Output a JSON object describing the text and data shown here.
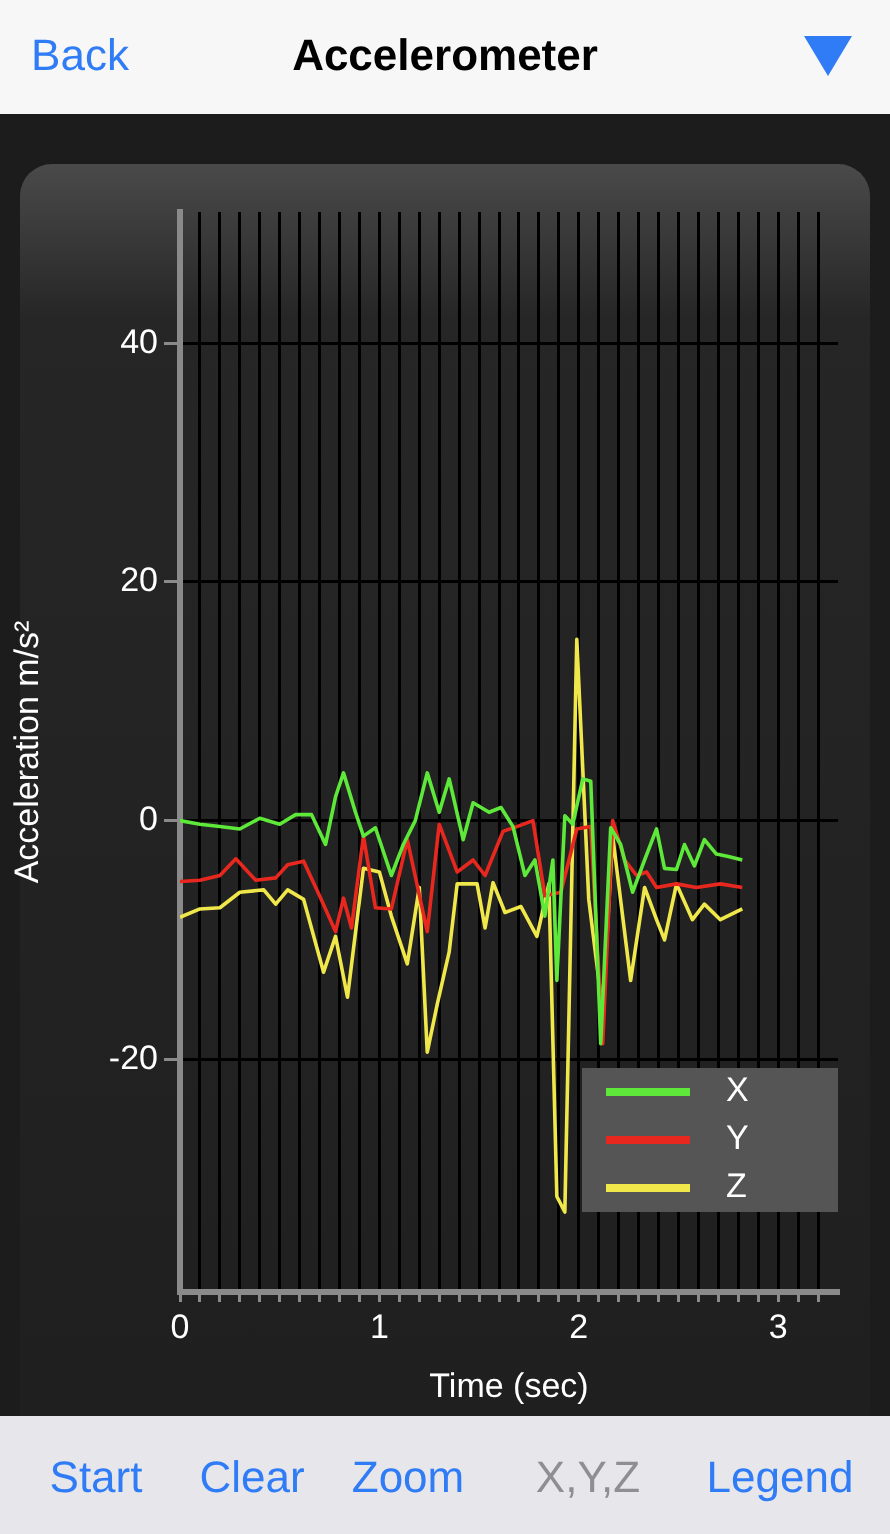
{
  "chart_data": {
    "type": "line",
    "title": "Accelerometer",
    "xlabel": "Time (sec)",
    "ylabel": "Acceleration m/s²",
    "xlim": [
      0,
      3.3
    ],
    "ylim": [
      -39.5,
      51
    ],
    "xticks": [
      0,
      {
        "value": 0.1,
        "label": null
      },
      {
        "value": 0.2,
        "label": null
      },
      {
        "value": 0.3,
        "label": null
      },
      {
        "value": 0.4,
        "label": null
      },
      {
        "value": 0.5,
        "label": null
      },
      {
        "value": 0.6,
        "label": null
      },
      {
        "value": 0.7,
        "label": null
      },
      {
        "value": 0.8,
        "label": null
      },
      {
        "value": 0.9,
        "label": null
      },
      1,
      {
        "value": 1.1,
        "label": null
      },
      {
        "value": 1.2,
        "label": null
      },
      {
        "value": 1.3,
        "label": null
      },
      {
        "value": 1.4,
        "label": null
      },
      {
        "value": 1.5,
        "label": null
      },
      {
        "value": 1.6,
        "label": null
      },
      {
        "value": 1.7,
        "label": null
      },
      {
        "value": 1.8,
        "label": null
      },
      {
        "value": 1.9,
        "label": null
      },
      2,
      {
        "value": 2.1,
        "label": null
      },
      {
        "value": 2.2,
        "label": null
      },
      {
        "value": 2.3,
        "label": null
      },
      {
        "value": 2.4,
        "label": null
      },
      {
        "value": 2.5,
        "label": null
      },
      {
        "value": 2.6,
        "label": null
      },
      {
        "value": 2.7,
        "label": null
      },
      {
        "value": 2.8,
        "label": null
      },
      {
        "value": 2.9,
        "label": null
      },
      3,
      {
        "value": 3.1,
        "label": null
      },
      {
        "value": 3.2,
        "label": null
      }
    ],
    "yticks": [
      -20,
      0,
      20,
      40
    ],
    "grid": true,
    "legend": "bottom right",
    "marker": "none",
    "line_style": "solid",
    "annotations": [
      "Back",
      "Start",
      "Clear",
      "Zoom",
      "X,Y,Z",
      "Legend"
    ],
    "series": [
      {
        "name": "X",
        "color": "#5ee83a",
        "x": [
          0,
          0.1,
          0.2,
          0.3,
          0.4,
          0.5,
          0.58,
          0.66,
          0.73,
          0.78,
          0.82,
          0.88,
          0.92,
          0.98,
          1.06,
          1.12,
          1.18,
          1.24,
          1.3,
          1.35,
          1.42,
          1.47,
          1.55,
          1.61,
          1.67,
          1.73,
          1.78,
          1.83,
          1.87,
          1.89,
          1.93,
          1.97,
          2.02,
          2.06,
          2.11,
          2.16,
          2.21,
          2.27,
          2.33,
          2.39,
          2.43,
          2.49,
          2.53,
          2.58,
          2.63,
          2.69,
          2.75,
          2.82
        ],
        "values": [
          0,
          -0.3,
          -0.5,
          -0.7,
          0.2,
          -0.3,
          0.5,
          0.5,
          -2,
          2,
          4,
          0.7,
          -1.3,
          -0.6,
          -4.6,
          -2,
          0,
          4,
          0.7,
          3.5,
          -1.6,
          1.5,
          0.7,
          1.1,
          -0.5,
          -4.6,
          -3.3,
          -8,
          -3.3,
          -13.4,
          0.4,
          -0.3,
          3.5,
          3.3,
          -18.7,
          -0.6,
          -2,
          -6,
          -3.3,
          -0.7,
          -4,
          -4.1,
          -2,
          -3.8,
          -1.6,
          -2.8,
          -3,
          -3.3
        ]
      },
      {
        "name": "Y",
        "color": "#e8281e",
        "x": [
          0,
          0.1,
          0.2,
          0.28,
          0.38,
          0.48,
          0.54,
          0.62,
          0.7,
          0.78,
          0.82,
          0.86,
          0.92,
          0.98,
          1.06,
          1.14,
          1.24,
          1.3,
          1.39,
          1.47,
          1.53,
          1.62,
          1.69,
          1.77,
          1.83,
          1.91,
          1.99,
          2.06,
          2.12,
          2.17,
          2.23,
          2.29,
          2.34,
          2.39,
          2.49,
          2.59,
          2.71,
          2.82
        ],
        "values": [
          -5.1,
          -5,
          -4.6,
          -3.2,
          -5,
          -4.8,
          -3.7,
          -3.4,
          -6.3,
          -9.3,
          -6.5,
          -9,
          -1.3,
          -7.3,
          -7.4,
          -1.6,
          -9.3,
          -0.3,
          -4.3,
          -3.3,
          -4.6,
          -0.9,
          -0.5,
          0,
          -6.3,
          -6,
          -0.7,
          -0.5,
          -18.7,
          0,
          -3.3,
          -4.6,
          -4.3,
          -5.6,
          -5.3,
          -5.6,
          -5.3,
          -5.6
        ]
      },
      {
        "name": "Z",
        "color": "#f0e84a",
        "x": [
          0,
          0.1,
          0.2,
          0.3,
          0.42,
          0.48,
          0.54,
          0.62,
          0.72,
          0.78,
          0.84,
          0.92,
          1,
          1.06,
          1.14,
          1.2,
          1.24,
          1.29,
          1.35,
          1.39,
          1.49,
          1.53,
          1.57,
          1.63,
          1.71,
          1.79,
          1.85,
          1.89,
          1.93,
          1.99,
          2.05,
          2.12,
          2.17,
          2.26,
          2.33,
          2.39,
          2.43,
          2.49,
          2.57,
          2.63,
          2.71,
          2.82
        ],
        "values": [
          -8.1,
          -7.4,
          -7.3,
          -6,
          -5.8,
          -7,
          -5.8,
          -6.6,
          -12.7,
          -9.7,
          -14.8,
          -4,
          -4.3,
          -8,
          -12,
          -5.6,
          -19.4,
          -15.4,
          -11,
          -5.3,
          -5.3,
          -9,
          -5.2,
          -7.7,
          -7.2,
          -9.7,
          -5.3,
          -31.5,
          -32.8,
          15.2,
          -6.6,
          -16,
          -1.3,
          -13.4,
          -5.6,
          -8.3,
          -10,
          -5.3,
          -8.3,
          -7,
          -8.3,
          -7.4
        ]
      }
    ]
  }
}
